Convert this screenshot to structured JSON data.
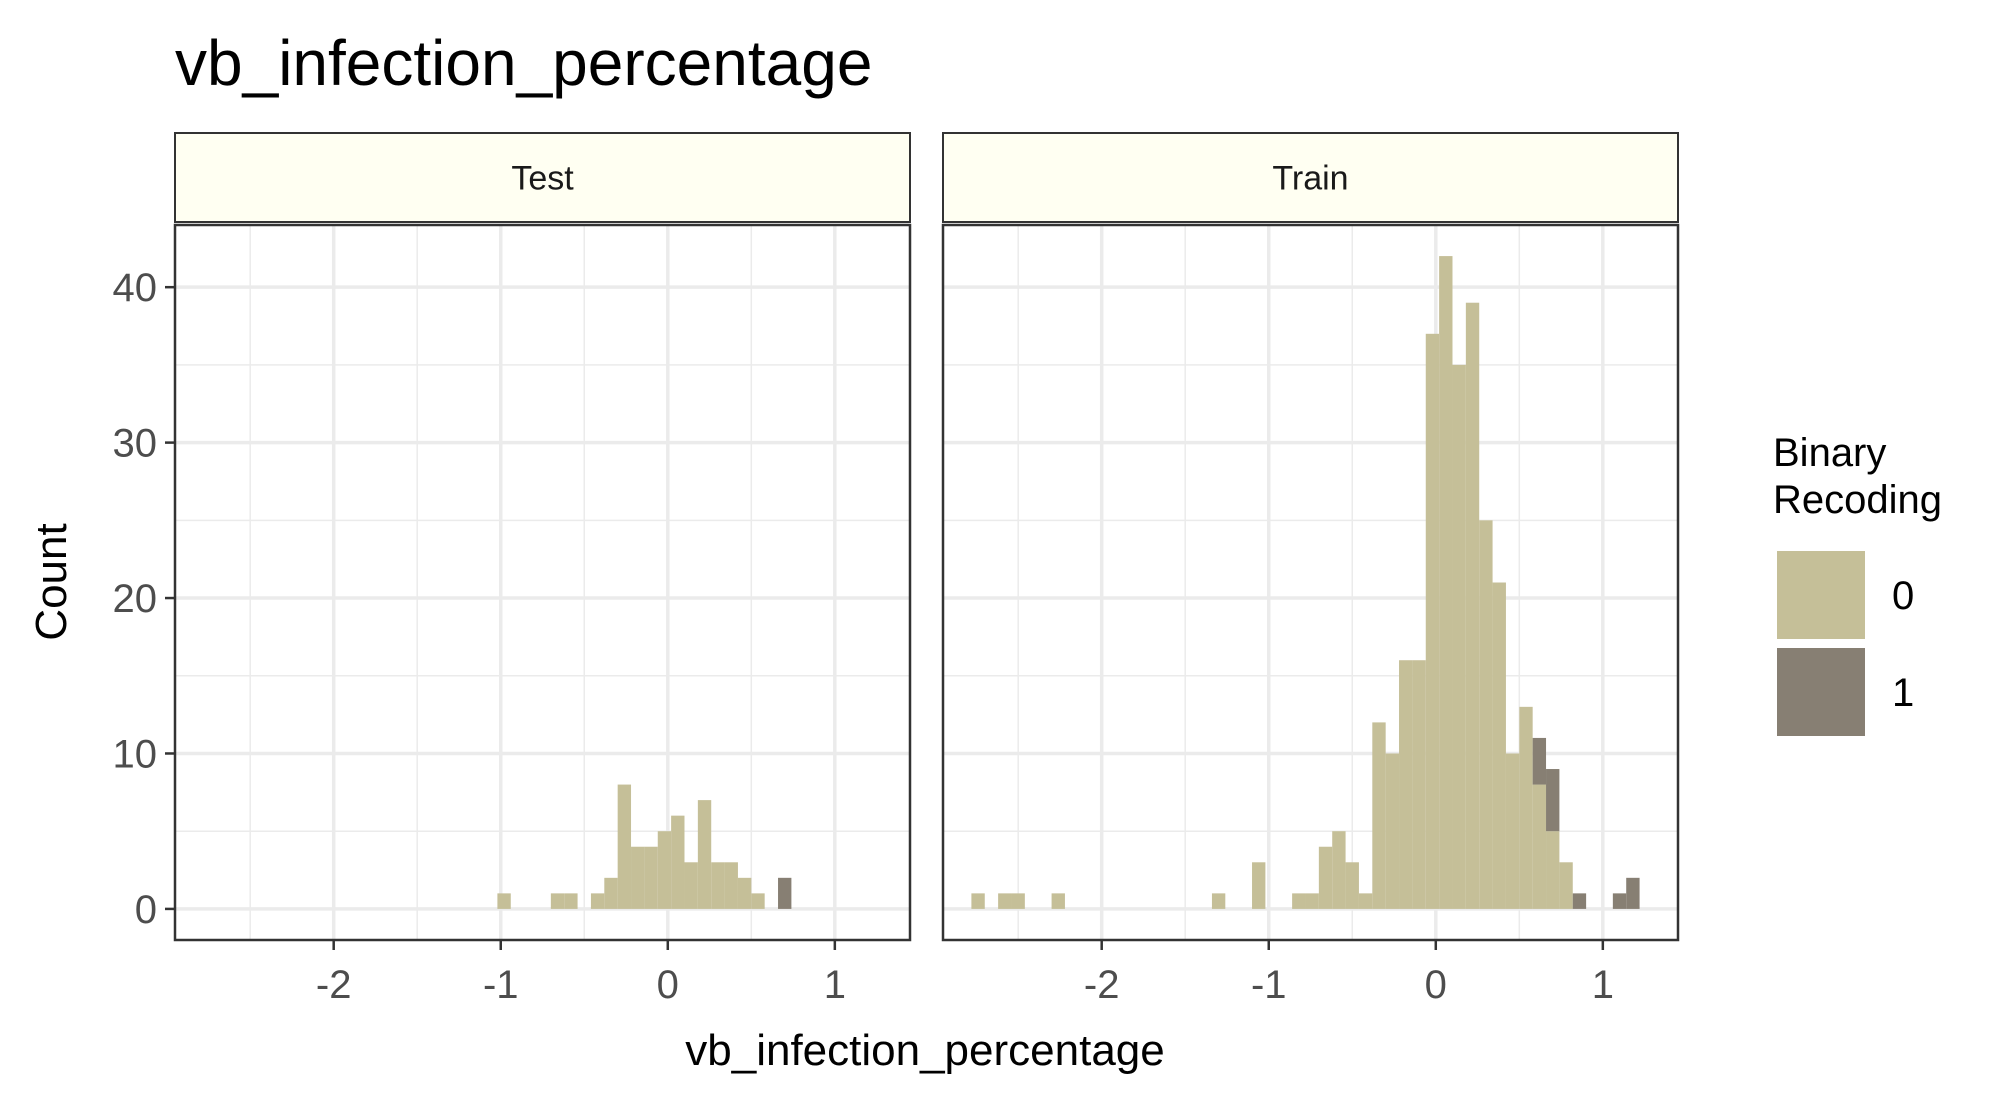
{
  "chart_data": {
    "type": "bar",
    "title": "vb_infection_percentage",
    "xlabel": "vb_infection_percentage",
    "ylabel": "Count",
    "xlim": [
      -2.95,
      1.45
    ],
    "ylim": [
      -2,
      44
    ],
    "xticks": [
      -2,
      -1,
      0,
      1
    ],
    "yticks": [
      0,
      10,
      20,
      30,
      40
    ],
    "grid": true,
    "legend": {
      "title": "Binary\nRecoding",
      "position": "right",
      "entries": [
        {
          "label": "0",
          "color": "#c5bf98"
        },
        {
          "label": "1",
          "color": "#877f73"
        }
      ]
    },
    "bin_width": 0.08,
    "panels": [
      {
        "strip": "Test",
        "series": [
          {
            "name": "0",
            "color": "#c5bf98",
            "bins": [
              {
                "x": -0.98,
                "y": 1
              },
              {
                "x": -0.66,
                "y": 1
              },
              {
                "x": -0.58,
                "y": 1
              },
              {
                "x": -0.42,
                "y": 1
              },
              {
                "x": -0.34,
                "y": 2
              },
              {
                "x": -0.26,
                "y": 8
              },
              {
                "x": -0.18,
                "y": 4
              },
              {
                "x": -0.1,
                "y": 4
              },
              {
                "x": -0.02,
                "y": 5
              },
              {
                "x": 0.06,
                "y": 6
              },
              {
                "x": 0.14,
                "y": 3
              },
              {
                "x": 0.22,
                "y": 7
              },
              {
                "x": 0.3,
                "y": 3
              },
              {
                "x": 0.38,
                "y": 3
              },
              {
                "x": 0.46,
                "y": 2
              },
              {
                "x": 0.54,
                "y": 1
              }
            ]
          },
          {
            "name": "1",
            "color": "#877f73",
            "bins": [
              {
                "x": 0.7,
                "y": 2
              }
            ]
          }
        ]
      },
      {
        "strip": "Train",
        "series": [
          {
            "name": "0",
            "color": "#c5bf98",
            "bins": [
              {
                "x": -2.74,
                "y": 1
              },
              {
                "x": -2.58,
                "y": 1
              },
              {
                "x": -2.5,
                "y": 1
              },
              {
                "x": -2.26,
                "y": 1
              },
              {
                "x": -1.3,
                "y": 1
              },
              {
                "x": -1.06,
                "y": 3
              },
              {
                "x": -0.82,
                "y": 1
              },
              {
                "x": -0.74,
                "y": 1
              },
              {
                "x": -0.66,
                "y": 4
              },
              {
                "x": -0.58,
                "y": 5
              },
              {
                "x": -0.5,
                "y": 3
              },
              {
                "x": -0.42,
                "y": 1
              },
              {
                "x": -0.34,
                "y": 12
              },
              {
                "x": -0.26,
                "y": 10
              },
              {
                "x": -0.18,
                "y": 16
              },
              {
                "x": -0.1,
                "y": 16
              },
              {
                "x": -0.02,
                "y": 37
              },
              {
                "x": 0.06,
                "y": 42
              },
              {
                "x": 0.14,
                "y": 35
              },
              {
                "x": 0.22,
                "y": 39
              },
              {
                "x": 0.3,
                "y": 25
              },
              {
                "x": 0.38,
                "y": 21
              },
              {
                "x": 0.46,
                "y": 10
              },
              {
                "x": 0.54,
                "y": 13
              },
              {
                "x": 0.62,
                "y": 8
              },
              {
                "x": 0.7,
                "y": 5
              },
              {
                "x": 0.78,
                "y": 3
              }
            ]
          },
          {
            "name": "1",
            "color": "#877f73",
            "bins": [
              {
                "x": 0.62,
                "y": 3
              },
              {
                "x": 0.7,
                "y": 4
              },
              {
                "x": 0.86,
                "y": 1
              },
              {
                "x": 1.1,
                "y": 1
              },
              {
                "x": 1.18,
                "y": 2
              }
            ]
          }
        ]
      }
    ]
  },
  "style": {
    "strip_fill": "#fffff2",
    "grid_color": "#ebebeb",
    "frame_color": "#333333",
    "text_color": "#4d4d4d"
  }
}
